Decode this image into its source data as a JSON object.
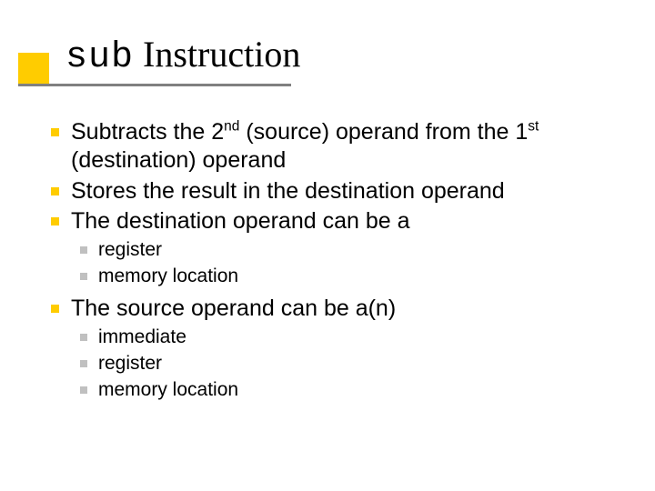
{
  "colors": {
    "background": "#ffffff",
    "text": "#000000",
    "accent_square": "#ffcc00",
    "underline": "#808080",
    "bullet_lvl1": "#ffcc00",
    "bullet_lvl2": "#c0c0c0"
  },
  "typography": {
    "title_font": "Times New Roman, serif",
    "title_fontsize_pt": 30,
    "mono_font": "Courier New, monospace",
    "body_font": "Verdana, sans-serif",
    "lvl1_fontsize_pt": 19,
    "lvl2_fontsize_pt": 16
  },
  "title": {
    "mono": "sub",
    "rest": " Instruction"
  },
  "body": {
    "p1_pre": "Subtracts the 2",
    "p1_sup1": "nd",
    "p1_mid": "  (source) operand from the 1",
    "p1_sup2": "st",
    "p1_post": " (destination) operand",
    "p2": "Stores the result in the destination operand",
    "p3": "The destination operand can be a",
    "p3_items": {
      "a": "register",
      "b": "memory location"
    },
    "p4": "The source operand can be a(n)",
    "p4_items": {
      "a": "immediate",
      "b": "register",
      "c": "memory location"
    }
  }
}
